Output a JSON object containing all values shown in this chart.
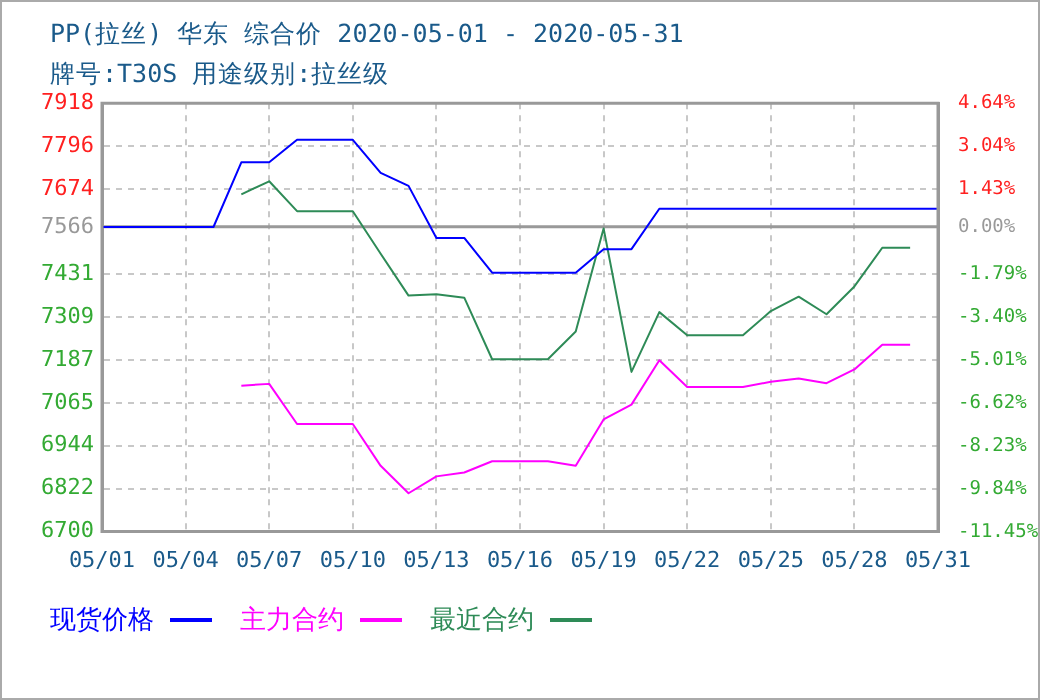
{
  "chart_data": {
    "type": "line",
    "title": "PP(拉丝) 华东 综合价 2020-05-01 - 2020-05-31",
    "subtitle": "牌号:T30S 用途级别:拉丝级",
    "x": [
      "2020-05-01",
      "2020-05-02",
      "2020-05-03",
      "2020-05-04",
      "2020-05-05",
      "2020-05-06",
      "2020-05-07",
      "2020-05-08",
      "2020-05-09",
      "2020-05-10",
      "2020-05-11",
      "2020-05-12",
      "2020-05-13",
      "2020-05-14",
      "2020-05-15",
      "2020-05-16",
      "2020-05-17",
      "2020-05-18",
      "2020-05-19",
      "2020-05-20",
      "2020-05-21",
      "2020-05-22",
      "2020-05-23",
      "2020-05-24",
      "2020-05-25",
      "2020-05-26",
      "2020-05-27",
      "2020-05-28",
      "2020-05-29",
      "2020-05-30",
      "2020-05-31"
    ],
    "series": [
      {
        "name": "现货价格",
        "color": "#0000ff",
        "values": [
          7566,
          7566,
          7566,
          7566,
          7566,
          7750,
          7750,
          7814,
          7814,
          7814,
          7720,
          7683,
          7535,
          7535,
          7436,
          7436,
          7436,
          7436,
          7503,
          7503,
          7618,
          7618,
          7618,
          7618,
          7618,
          7618,
          7618,
          7618,
          7618,
          7618,
          7618
        ]
      },
      {
        "name": "主力合约",
        "color": "#ff00ff",
        "values": [
          null,
          null,
          null,
          null,
          null,
          7115,
          7120,
          7006,
          7006,
          7006,
          6887,
          6809,
          6857,
          6868,
          6900,
          6900,
          6900,
          6887,
          7019,
          7061,
          7187,
          7111,
          7111,
          7111,
          7126,
          7135,
          7122,
          7161,
          7231,
          7231,
          null
        ]
      },
      {
        "name": "最近合约",
        "color": "#2e8b57",
        "values": [
          null,
          null,
          null,
          null,
          null,
          7659,
          7696,
          7611,
          7611,
          7611,
          7490,
          7371,
          7375,
          7365,
          7190,
          7190,
          7190,
          7269,
          7562,
          7154,
          7324,
          7258,
          7258,
          7258,
          7327,
          7368,
          7318,
          7397,
          7507,
          7507,
          null
        ]
      }
    ],
    "xlim": [
      "2020-05-01",
      "2020-05-31"
    ],
    "xticks": [
      {
        "value": "2020-05-01",
        "label": "05/01"
      },
      {
        "value": "2020-05-04",
        "label": "05/04"
      },
      {
        "value": "2020-05-07",
        "label": "05/07"
      },
      {
        "value": "2020-05-10",
        "label": "05/10"
      },
      {
        "value": "2020-05-13",
        "label": "05/13"
      },
      {
        "value": "2020-05-16",
        "label": "05/16"
      },
      {
        "value": "2020-05-19",
        "label": "05/19"
      },
      {
        "value": "2020-05-22",
        "label": "05/22"
      },
      {
        "value": "2020-05-25",
        "label": "05/25"
      },
      {
        "value": "2020-05-28",
        "label": "05/28"
      },
      {
        "value": "2020-05-31",
        "label": "05/31"
      }
    ],
    "ylim": [
      6700,
      7918
    ],
    "yticks": [
      6700,
      6822,
      6944,
      7065,
      7187,
      7309,
      7431,
      7566,
      7674,
      7796,
      7918
    ],
    "y2lim": [
      -11.45,
      4.64
    ],
    "y2ticks": [
      {
        "value": -11.45,
        "label": "-11.45%"
      },
      {
        "value": -9.84,
        "label": "-9.84%"
      },
      {
        "value": -8.23,
        "label": "-8.23%"
      },
      {
        "value": -6.62,
        "label": "-6.62%"
      },
      {
        "value": -5.01,
        "label": "-5.01%"
      },
      {
        "value": -3.4,
        "label": "-3.40%"
      },
      {
        "value": -1.79,
        "label": "-1.79%"
      },
      {
        "value": 0,
        "label": "0.00%"
      },
      {
        "value": 1.43,
        "label": "1.43%"
      },
      {
        "value": 3.04,
        "label": "3.04%"
      },
      {
        "value": 4.64,
        "label": "4.64%"
      }
    ],
    "ref_lines": [
      {
        "axis": "y2",
        "value": 0,
        "color": "#999999",
        "line_style": "solid"
      }
    ],
    "grid": true,
    "legend": "bottom",
    "marker": "none",
    "line_style": "solid"
  }
}
